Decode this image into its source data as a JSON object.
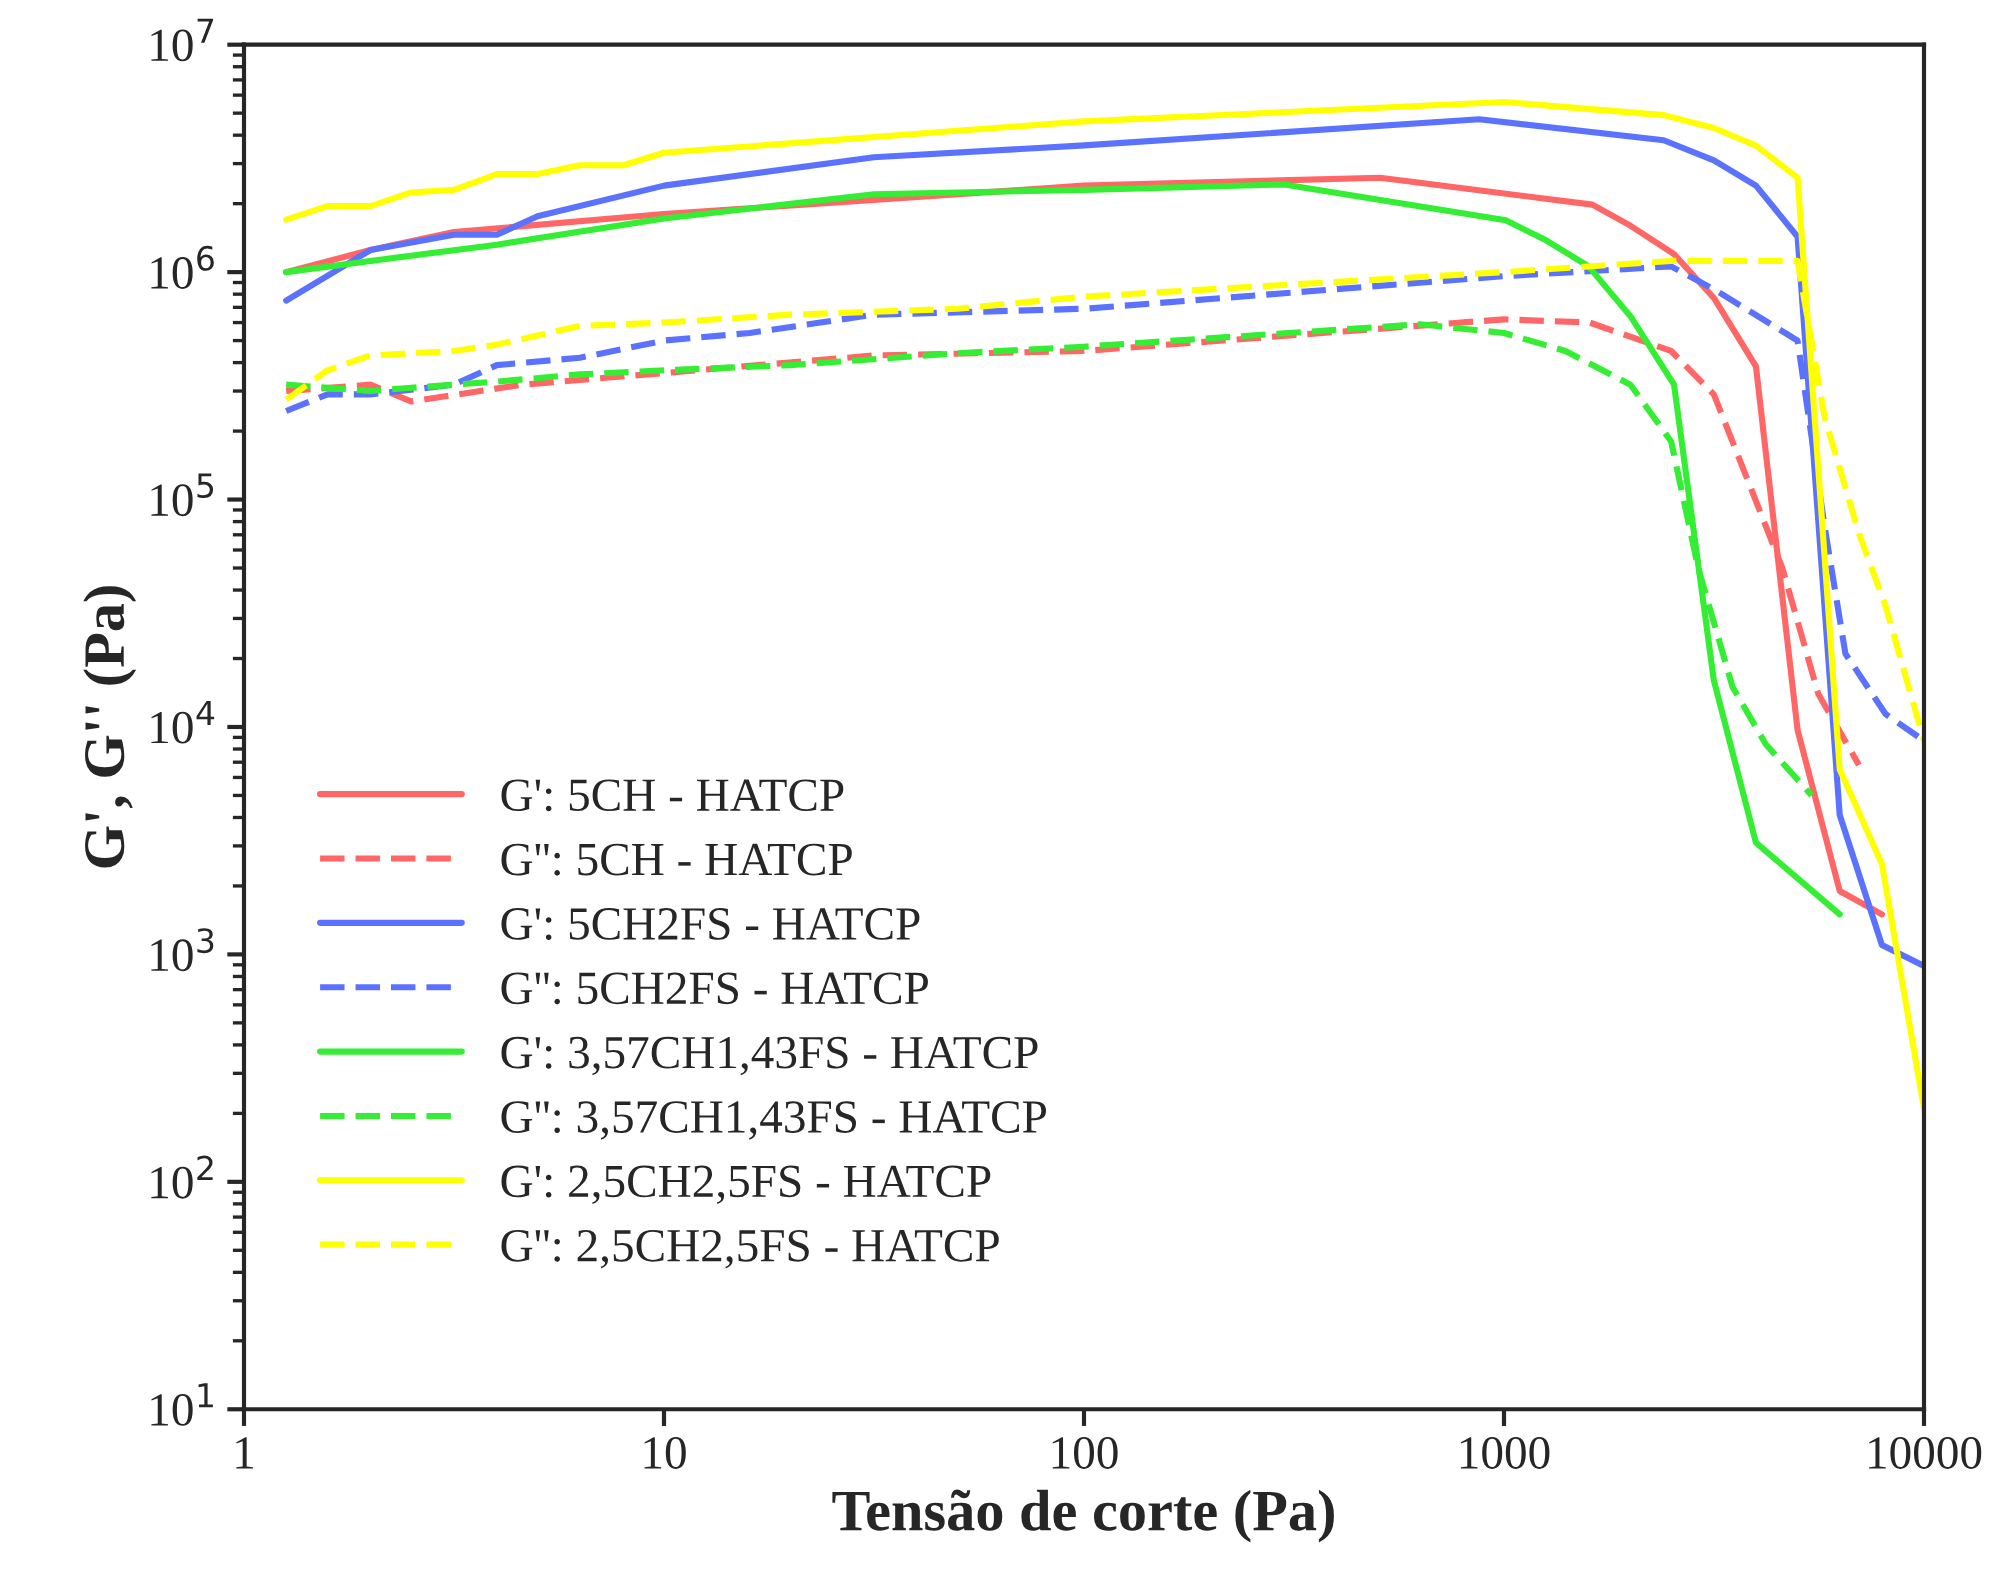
{
  "chart_data": {
    "type": "line",
    "xlabel": "Tensão de corte (Pa)",
    "ylabel": "G', G'' (Pa)",
    "log": "xy",
    "xlim": [
      1,
      10000
    ],
    "xticks": [
      1,
      10,
      100,
      1000,
      10000
    ],
    "ylim": [
      10,
      10000000
    ],
    "yticks": [
      {
        "value": 10,
        "label": "10$^{1}$"
      },
      {
        "value": 100,
        "label": "10$^{2}$"
      },
      {
        "value": 1000,
        "label": "10$^{3}$"
      },
      {
        "value": 10000,
        "label": "10$^{4}$"
      },
      {
        "value": 100000,
        "label": "10$^{5}$"
      },
      {
        "value": 1000000,
        "label": "10$^{6}$"
      },
      {
        "value": 10000000,
        "label": "10$^{7}$"
      }
    ],
    "grid": false,
    "legend": "lower left",
    "marker": "none",
    "series": [
      {
        "name": "G': 5CH - HATCP",
        "color": "#ff6666",
        "line_style": "solid",
        "x": [
          1.26,
          2,
          3.16,
          10,
          100,
          507,
          1623,
          2000,
          2540,
          3160,
          3980,
          5000,
          6300,
          7940
        ],
        "values": [
          1000000,
          1250000,
          1500000,
          1800000,
          2400000,
          2600000,
          1980000,
          1600000,
          1200000,
          770000,
          385000,
          9700,
          1900,
          1500
        ]
      },
      {
        "name": "G'': 5CH - HATCP",
        "color": "#ff6666",
        "line_style": "dashed",
        "x": [
          1.26,
          2,
          2.5,
          4.6,
          10,
          31.6,
          100,
          1000,
          1600,
          2500,
          3160,
          4600,
          5600,
          7000
        ],
        "values": [
          300000,
          320000,
          270000,
          320000,
          360000,
          430000,
          450000,
          620000,
          600000,
          450000,
          290000,
          50000,
          14000,
          6800
        ]
      },
      {
        "name": "G': 5CH2FS - HATCP",
        "color": "#5b72ff",
        "line_style": "solid",
        "x": [
          1.26,
          2,
          3.16,
          4,
          5,
          10,
          31.6,
          98,
          873,
          2400,
          3160,
          3980,
          5000,
          6300,
          7940,
          10000
        ],
        "values": [
          750000,
          1250000,
          1460000,
          1460000,
          1760000,
          2400000,
          3200000,
          3600000,
          4700000,
          3800000,
          3100000,
          2400000,
          1430000,
          4100,
          1100,
          890
        ]
      },
      {
        "name": "G'': 5CH2FS - HATCP",
        "color": "#5b72ff",
        "line_style": "dashed",
        "x": [
          1.26,
          1.58,
          2,
          3.16,
          4,
          6.3,
          10,
          16,
          31.6,
          100,
          1000,
          2500,
          3200,
          5000,
          5800,
          6500,
          8100,
          10000
        ],
        "values": [
          245000,
          290000,
          290000,
          320000,
          390000,
          420000,
          500000,
          540000,
          650000,
          690000,
          960000,
          1060000,
          830000,
          500000,
          76000,
          21000,
          11400,
          8700
        ]
      },
      {
        "name": "G': 3,57CH1,43FS - HATCP",
        "color": "#33ee33",
        "line_style": "solid",
        "x": [
          1.26,
          2,
          4,
          10,
          31.6,
          100,
          300,
          1010,
          1260,
          1590,
          2000,
          2540,
          3160,
          3980,
          6300
        ],
        "values": [
          1000000,
          1120000,
          1320000,
          1720000,
          2200000,
          2300000,
          2430000,
          1690000,
          1380000,
          1060000,
          640000,
          320000,
          16000,
          3100,
          1500
        ]
      },
      {
        "name": "G'': 3,57CH1,43FS - HATCP",
        "color": "#33ee33",
        "line_style": "dashed",
        "x": [
          1.26,
          2,
          2.5,
          4,
          6.3,
          10,
          20,
          50,
          100,
          630,
          1000,
          1400,
          2000,
          2500,
          2900,
          3500,
          4200,
          5400
        ],
        "values": [
          320000,
          300000,
          310000,
          330000,
          355000,
          370000,
          390000,
          440000,
          470000,
          590000,
          540000,
          450000,
          320000,
          180000,
          50000,
          15000,
          8400,
          5000
        ]
      },
      {
        "name": "G': 2,5CH2,5FS - HATCP",
        "color": "#ffff00",
        "line_style": "solid",
        "x": [
          1.26,
          1.58,
          2,
          2.5,
          3.16,
          4,
          5,
          6.3,
          8,
          10,
          100,
          1000,
          2400,
          3160,
          3980,
          5000,
          6300,
          7940,
          10000
        ],
        "values": [
          1700000,
          1950000,
          1950000,
          2240000,
          2300000,
          2700000,
          2700000,
          2950000,
          2950000,
          3350000,
          4600000,
          5600000,
          4900000,
          4300000,
          3600000,
          2600000,
          6500,
          2500,
          210
        ]
      },
      {
        "name": "G'': 2,5CH2,5FS - HATCP",
        "color": "#ffff00",
        "line_style": "dashed",
        "x": [
          1.26,
          1.58,
          2,
          3.16,
          4,
          6.3,
          10,
          20,
          50,
          100,
          1000,
          2500,
          5000,
          5800,
          7000,
          8100,
          10000
        ],
        "values": [
          275000,
          370000,
          430000,
          450000,
          480000,
          580000,
          600000,
          650000,
          690000,
          780000,
          1000000,
          1120000,
          1120000,
          230000,
          71000,
          34000,
          8700
        ]
      }
    ]
  }
}
